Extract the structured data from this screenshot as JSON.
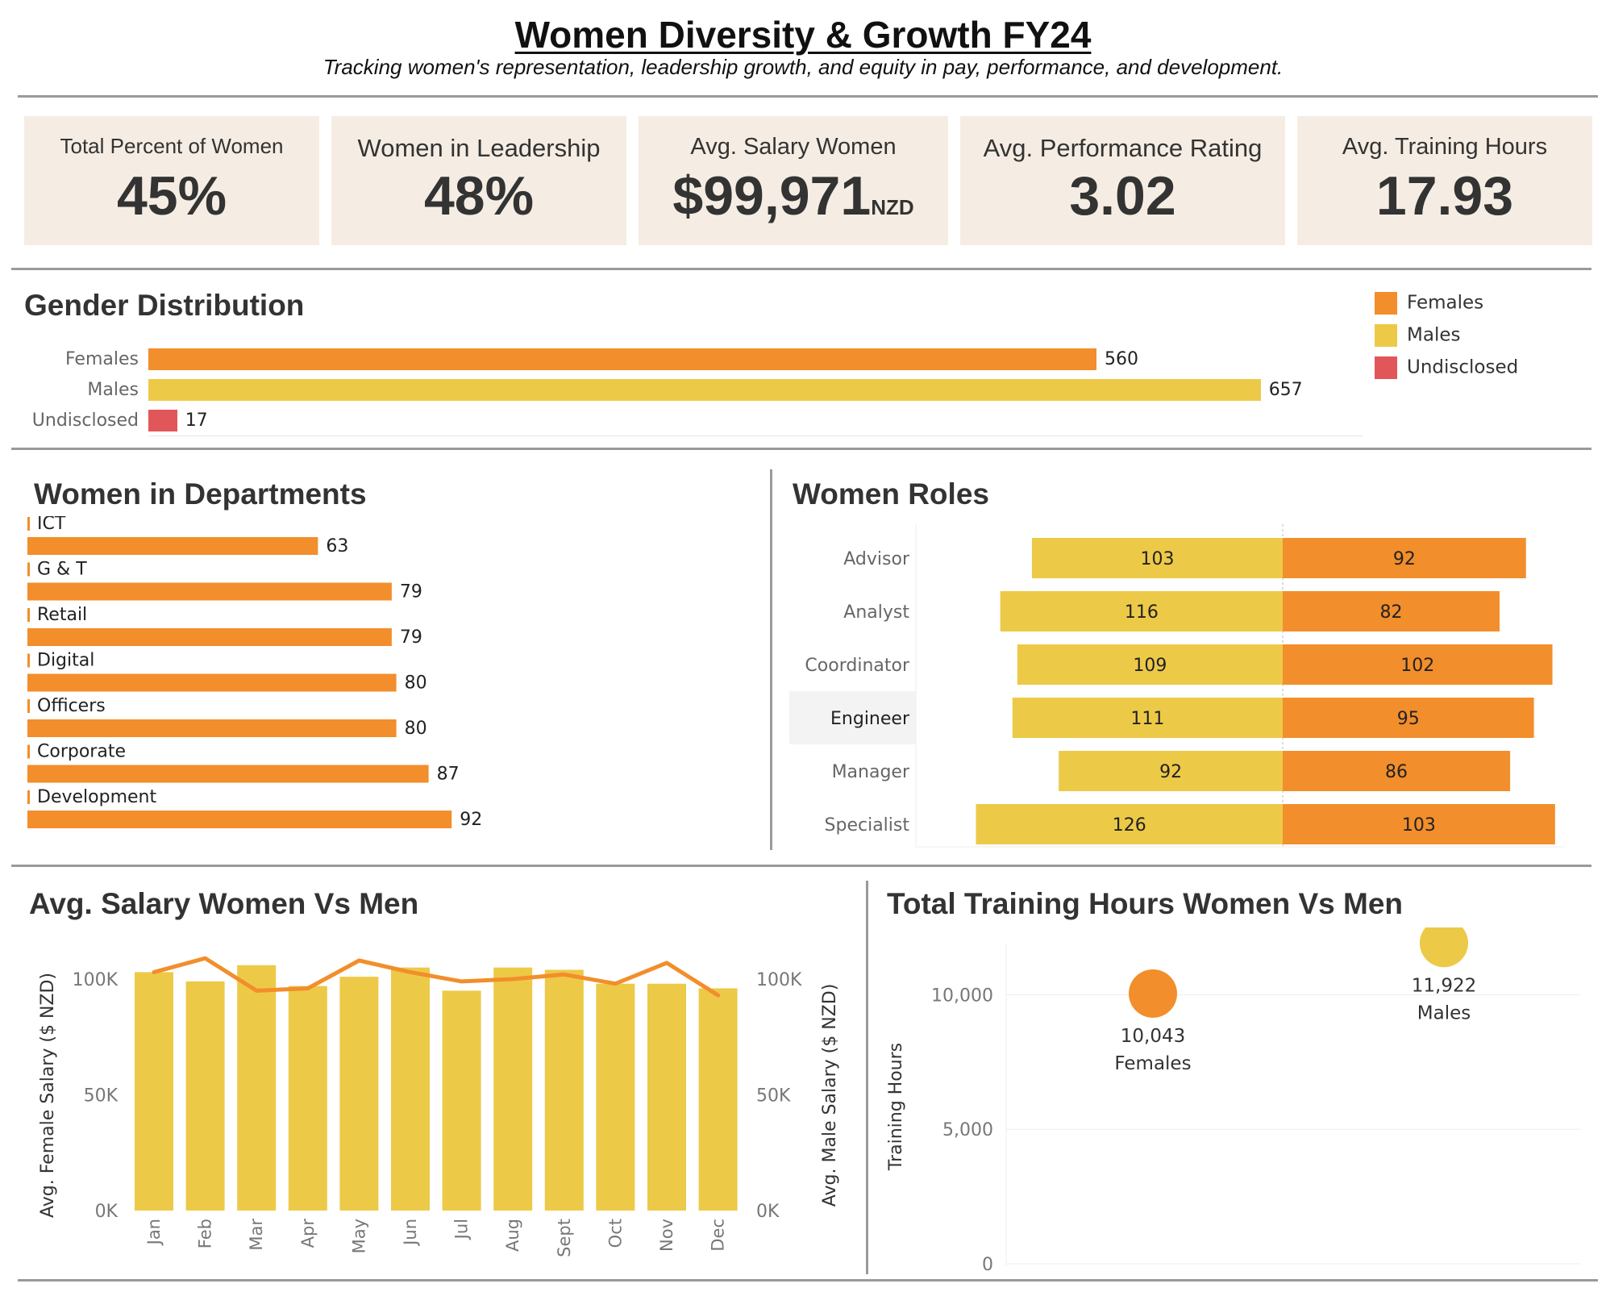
{
  "header": {
    "title": "Women Diversity & Growth FY24",
    "subtitle": "Tracking women's representation, leadership growth, and equity in pay, performance, and development."
  },
  "kpis": [
    {
      "label": "Total Percent of Women",
      "value": "45%",
      "unit": ""
    },
    {
      "label": "Women in Leadership",
      "value": "48%",
      "unit": ""
    },
    {
      "label": "Avg. Salary Women",
      "value": "$99,971",
      "unit": "NZD"
    },
    {
      "label": "Avg. Performance Rating",
      "value": "3.02",
      "unit": ""
    },
    {
      "label": "Avg. Training Hours",
      "value": "17.93",
      "unit": ""
    }
  ],
  "colors": {
    "female": "#f28e2b",
    "male": "#edc948",
    "undisclosed": "#e15759",
    "kpi_bg": "#f5ede3"
  },
  "chart_data": [
    {
      "type": "bar",
      "title": "Gender Distribution",
      "categories": [
        "Females",
        "Males",
        "Undisclosed"
      ],
      "values": [
        560,
        657,
        17
      ],
      "legend": [
        "Females",
        "Males",
        "Undisclosed"
      ],
      "legend_position": "top-right"
    },
    {
      "type": "bar",
      "title": "Women in Departments",
      "categories": [
        "ICT",
        "G & T",
        "Retail",
        "Digital",
        "Officers",
        "Corporate",
        "Development"
      ],
      "values": [
        63,
        79,
        79,
        80,
        80,
        87,
        92
      ]
    },
    {
      "type": "bar",
      "title": "Women Roles",
      "categories": [
        "Advisor",
        "Analyst",
        "Coordinator",
        "Engineer",
        "Manager",
        "Specialist"
      ],
      "series": [
        {
          "values": [
            103,
            116,
            109,
            111,
            92,
            126
          ]
        },
        {
          "values": [
            92,
            82,
            102,
            95,
            86,
            103
          ]
        }
      ],
      "highlighted": "Engineer"
    },
    {
      "type": "bar",
      "title": "Avg. Salary Women Vs Men",
      "categories": [
        "Jan",
        "Feb",
        "Mar",
        "Apr",
        "May",
        "Jun",
        "Jul",
        "Aug",
        "Sept",
        "Oct",
        "Nov",
        "Dec"
      ],
      "series": [
        {
          "name": "Avg. Female Salary ($ NZD)",
          "type": "bar",
          "values": [
            103000,
            99000,
            106000,
            97000,
            101000,
            105000,
            95000,
            105000,
            104000,
            98000,
            98000,
            96000
          ]
        },
        {
          "name": "Avg. Male Salary ($ NZD)",
          "type": "line",
          "values": [
            103000,
            109000,
            95000,
            96000,
            108000,
            103000,
            99000,
            100000,
            102000,
            98000,
            107000,
            93000
          ]
        }
      ],
      "ylabel": "Avg. Female Salary ($ NZD)",
      "y2label": "Avg. Male Salary ($ NZD)",
      "yticks": [
        "0K",
        "50K",
        "100K"
      ],
      "ylim": [
        0,
        100000
      ]
    },
    {
      "type": "scatter",
      "title": "Total Training Hours Women Vs Men",
      "points": [
        {
          "label": "Females",
          "value": 10043,
          "value_label": "10,043"
        },
        {
          "label": "Males",
          "value": 11922,
          "value_label": "11,922"
        }
      ],
      "ylabel": "Training Hours",
      "yticks": [
        "0",
        "5,000",
        "10,000"
      ],
      "ylim": [
        0,
        12500
      ]
    }
  ]
}
